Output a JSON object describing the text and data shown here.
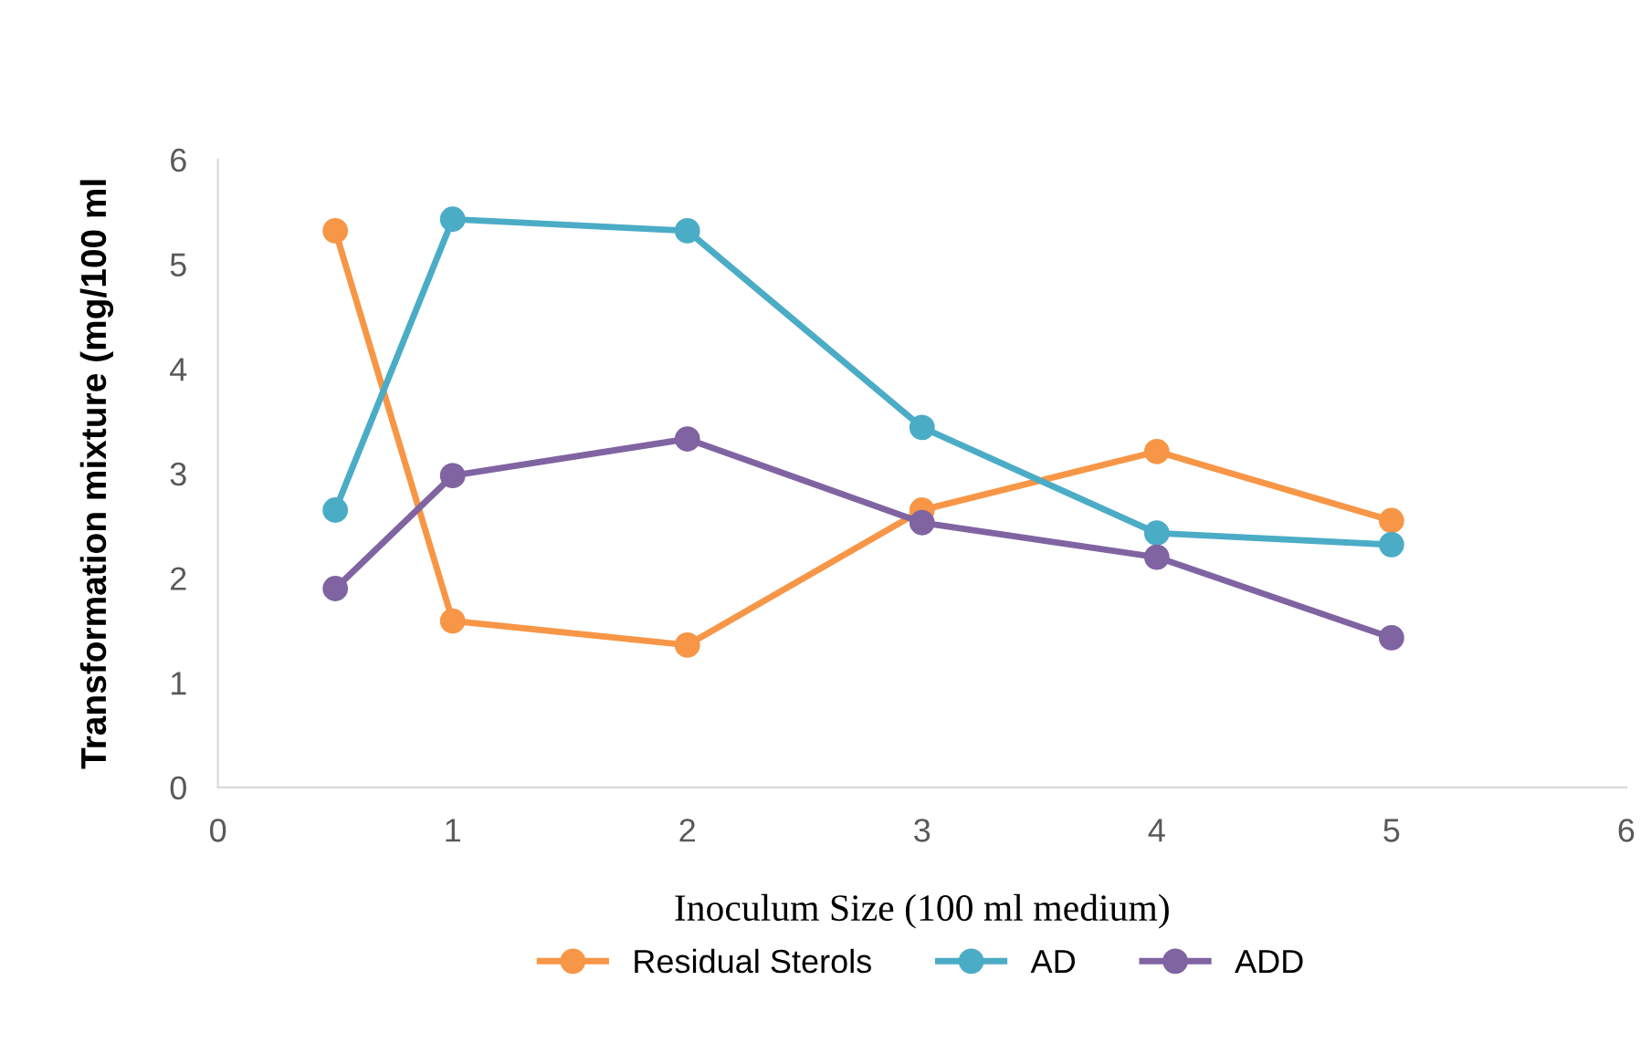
{
  "chart_data": {
    "type": "line",
    "xlabel": "Inoculum Size (100 ml medium)",
    "ylabel": "Transformation mixture (mg/100 ml",
    "x": [
      0.5,
      1,
      2,
      3,
      4,
      5
    ],
    "series": [
      {
        "name": "Residual Sterols",
        "color": "#f79646",
        "values": [
          5.32,
          1.59,
          1.36,
          2.65,
          3.21,
          2.55
        ]
      },
      {
        "name": "AD",
        "color": "#4bacc6",
        "values": [
          2.65,
          5.43,
          5.32,
          3.44,
          2.43,
          2.32
        ]
      },
      {
        "name": "ADD",
        "color": "#8064a2",
        "values": [
          1.9,
          2.98,
          3.33,
          2.53,
          2.2,
          1.43
        ]
      }
    ],
    "xlim": [
      0,
      6
    ],
    "xticks": [
      0,
      1,
      2,
      3,
      4,
      5,
      6
    ],
    "ylim": [
      0,
      6
    ],
    "yticks": [
      0,
      1,
      2,
      3,
      4,
      5,
      6
    ],
    "grid": false,
    "legend": "bottom",
    "marker": "circle",
    "line_style": "solid"
  }
}
